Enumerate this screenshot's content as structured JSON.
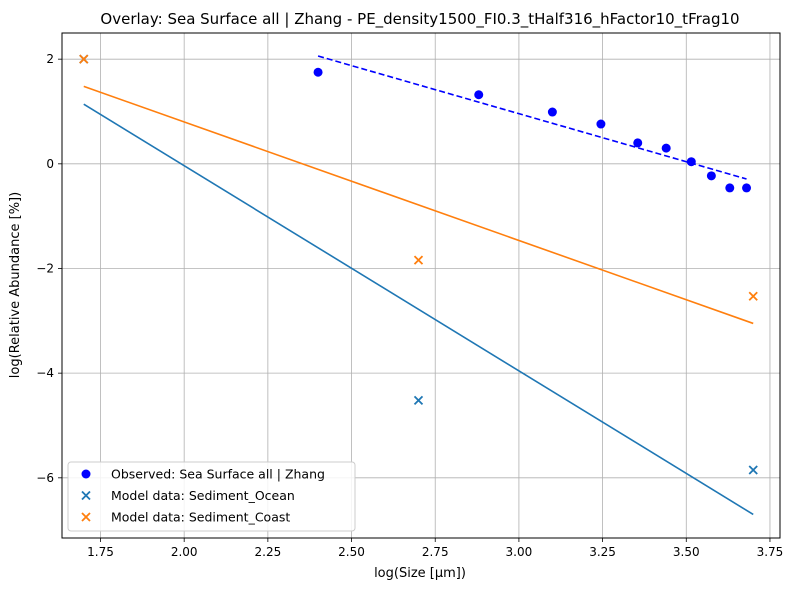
{
  "chart_data": {
    "type": "scatter",
    "title": "Overlay: Sea Surface all | Zhang - PE_density1500_FI0.3_tHalf316_hFactor10_tFrag10",
    "xlabel": "log(Size [µm])",
    "ylabel": "log(Relative Abundance [%])",
    "xlim": [
      1.635,
      3.78
    ],
    "ylim": [
      -7.15,
      2.5
    ],
    "xticks": [
      1.75,
      2.0,
      2.25,
      2.5,
      2.75,
      3.0,
      3.25,
      3.5,
      3.75
    ],
    "xtick_labels": [
      "1.75",
      "2.00",
      "2.25",
      "2.50",
      "2.75",
      "3.00",
      "3.25",
      "3.50",
      "3.75"
    ],
    "yticks": [
      -6,
      -4,
      -2,
      0,
      2
    ],
    "ytick_labels": [
      "−6",
      "−4",
      "−2",
      "0",
      "2"
    ],
    "grid": true,
    "legend_position": "lower-left",
    "series": [
      {
        "name": "Observed: Sea Surface all | Zhang",
        "kind": "scatter-circle",
        "color": "#0000ff",
        "x": [
          2.4,
          2.88,
          3.1,
          3.245,
          3.355,
          3.44,
          3.515,
          3.575,
          3.63,
          3.68
        ],
        "y": [
          1.75,
          1.32,
          0.99,
          0.76,
          0.4,
          0.3,
          0.04,
          -0.23,
          -0.46,
          -0.46
        ]
      },
      {
        "name": "Model data: Sediment_Ocean",
        "kind": "scatter-x",
        "color": "#1f77b4",
        "x": [
          1.7,
          2.7,
          3.7
        ],
        "y": [
          2.0,
          -4.52,
          -5.85
        ]
      },
      {
        "name": "Model data: Sediment_Coast",
        "kind": "scatter-x",
        "color": "#ff7f0e",
        "x": [
          1.7,
          2.7,
          3.7
        ],
        "y": [
          2.0,
          -1.84,
          -2.53
        ]
      }
    ],
    "lines": [
      {
        "kind": "dashed",
        "color": "#0000ff",
        "x": [
          2.4,
          3.68
        ],
        "y": [
          2.06,
          -0.29
        ]
      },
      {
        "kind": "solid",
        "color": "#1f77b4",
        "x": [
          1.7,
          3.7
        ],
        "y": [
          1.14,
          -6.7
        ]
      },
      {
        "kind": "solid",
        "color": "#ff7f0e",
        "x": [
          1.7,
          3.7
        ],
        "y": [
          1.48,
          -3.05
        ]
      }
    ]
  }
}
